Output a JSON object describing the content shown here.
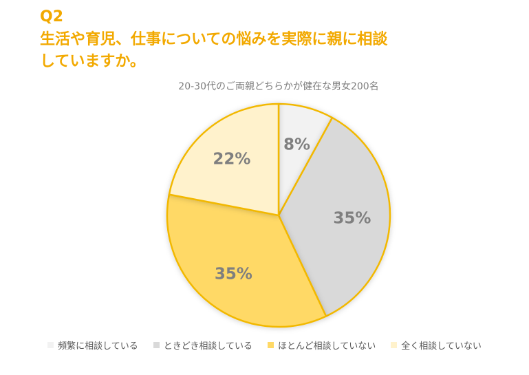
{
  "header": {
    "question_no": "Q2",
    "title": "生活や育児、仕事についての悩みを実際に親に相談していますか。"
  },
  "chart_data": {
    "type": "pie",
    "title": "20-30代のご両親どちらかが健在な男女200名",
    "categories": [
      "頻繁に相談している",
      "ときどき相談している",
      "ほとんど相談していない",
      "全く相談していない"
    ],
    "values": [
      8,
      35,
      35,
      22
    ],
    "value_labels": [
      "8%",
      "35%",
      "35%",
      "22%"
    ],
    "colors": [
      "#F2F2F2",
      "#D9D9D9",
      "#FFD966",
      "#FFF2CC"
    ],
    "border_color": "#F2B800",
    "label_color": "#7f7f7f",
    "start": "12 o'clock, clockwise",
    "legend_position": "bottom"
  }
}
